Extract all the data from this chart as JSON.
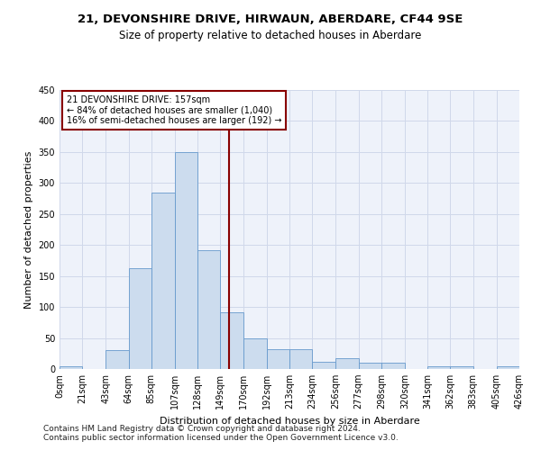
{
  "title": "21, DEVONSHIRE DRIVE, HIRWAUN, ABERDARE, CF44 9SE",
  "subtitle": "Size of property relative to detached houses in Aberdare",
  "xlabel": "Distribution of detached houses by size in Aberdare",
  "ylabel": "Number of detached properties",
  "footnote1": "Contains HM Land Registry data © Crown copyright and database right 2024.",
  "footnote2": "Contains public sector information licensed under the Open Government Licence v3.0.",
  "annotation_line1": "21 DEVONSHIRE DRIVE: 157sqm",
  "annotation_line2": "← 84% of detached houses are smaller (1,040)",
  "annotation_line3": "16% of semi-detached houses are larger (192) →",
  "property_sqm": 157,
  "bin_edges": [
    0,
    21,
    43,
    64,
    85,
    107,
    128,
    149,
    170,
    192,
    213,
    234,
    256,
    277,
    298,
    320,
    341,
    362,
    383,
    405,
    426
  ],
  "bar_heights": [
    4,
    0,
    30,
    162,
    285,
    350,
    192,
    91,
    50,
    32,
    32,
    11,
    18,
    10,
    10,
    0,
    5,
    5,
    0,
    5
  ],
  "bar_color": "#ccdcee",
  "bar_edge_color": "#6699cc",
  "vline_color": "#880000",
  "vline_x": 157,
  "bg_color": "#eef2fa",
  "grid_color": "#d0d8ea",
  "annotation_box_color": "#880000",
  "title_fontsize": 9.5,
  "subtitle_fontsize": 8.5,
  "xlabel_fontsize": 8,
  "ylabel_fontsize": 8,
  "tick_fontsize": 7,
  "footnote_fontsize": 6.5,
  "ylim": [
    0,
    450
  ],
  "yticks": [
    0,
    50,
    100,
    150,
    200,
    250,
    300,
    350,
    400,
    450
  ]
}
